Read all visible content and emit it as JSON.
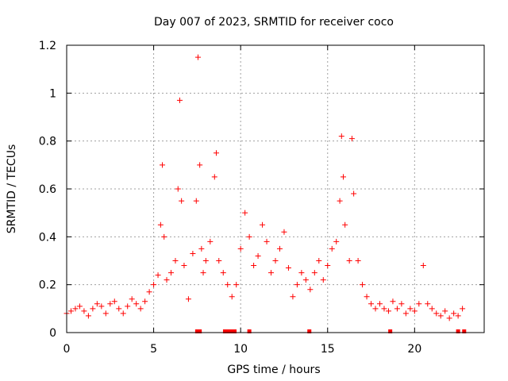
{
  "chart_data": {
    "type": "scatter",
    "title": "Day 007 of 2023, SRMTID for receiver coco",
    "xlabel": "GPS time / hours",
    "ylabel": "SRMTID / TECUs",
    "xlim": [
      0,
      24
    ],
    "ylim": [
      0,
      1.2
    ],
    "xticks": [
      "0",
      "5",
      "10",
      "15",
      "20"
    ],
    "xtick_values": [
      0,
      5,
      10,
      15,
      20
    ],
    "yticks": [
      "0",
      "0.2",
      "0.4",
      "0.6",
      "0.8",
      "1",
      "1.2"
    ],
    "ytick_values": [
      0,
      0.2,
      0.4,
      0.6,
      0.8,
      1.0,
      1.2
    ],
    "grid": true,
    "marker": "+",
    "series_color": "#ff0000",
    "series": [
      {
        "name": "SRMTID",
        "x": [
          0.0,
          0.25,
          0.5,
          0.75,
          1.0,
          1.25,
          1.5,
          1.75,
          2.0,
          2.25,
          2.5,
          2.75,
          3.0,
          3.25,
          3.5,
          3.75,
          4.0,
          4.25,
          4.5,
          4.75,
          5.0,
          5.25,
          5.4,
          5.5,
          5.6,
          5.75,
          6.0,
          6.25,
          6.4,
          6.5,
          6.6,
          6.75,
          7.0,
          7.25,
          7.45,
          7.55,
          7.65,
          7.75,
          7.85,
          8.0,
          8.25,
          8.5,
          8.6,
          8.75,
          9.0,
          9.25,
          9.5,
          9.75,
          10.0,
          10.25,
          10.5,
          10.75,
          11.0,
          11.25,
          11.5,
          11.75,
          12.0,
          12.25,
          12.5,
          12.75,
          13.0,
          13.25,
          13.5,
          13.75,
          14.0,
          14.25,
          14.5,
          14.75,
          15.0,
          15.25,
          15.5,
          15.7,
          15.8,
          15.9,
          16.0,
          16.25,
          16.4,
          16.5,
          16.75,
          17.0,
          17.25,
          17.5,
          17.75,
          18.0,
          18.25,
          18.5,
          18.75,
          19.0,
          19.25,
          19.5,
          19.75,
          20.0,
          20.25,
          20.5,
          20.75,
          21.0,
          21.25,
          21.5,
          21.75,
          22.0,
          22.25,
          22.5,
          22.75
        ],
        "y": [
          0.08,
          0.09,
          0.1,
          0.11,
          0.09,
          0.07,
          0.1,
          0.12,
          0.11,
          0.08,
          0.12,
          0.13,
          0.1,
          0.08,
          0.11,
          0.14,
          0.12,
          0.1,
          0.13,
          0.17,
          0.2,
          0.24,
          0.45,
          0.7,
          0.4,
          0.22,
          0.25,
          0.3,
          0.6,
          0.97,
          0.55,
          0.28,
          0.14,
          0.33,
          0.55,
          1.15,
          0.7,
          0.35,
          0.25,
          0.3,
          0.38,
          0.65,
          0.75,
          0.3,
          0.25,
          0.2,
          0.15,
          0.2,
          0.35,
          0.5,
          0.4,
          0.28,
          0.32,
          0.45,
          0.38,
          0.25,
          0.3,
          0.35,
          0.42,
          0.27,
          0.15,
          0.2,
          0.25,
          0.22,
          0.18,
          0.25,
          0.3,
          0.22,
          0.28,
          0.35,
          0.38,
          0.55,
          0.82,
          0.65,
          0.45,
          0.3,
          0.81,
          0.58,
          0.3,
          0.2,
          0.15,
          0.12,
          0.1,
          0.12,
          0.1,
          0.09,
          0.13,
          0.1,
          0.12,
          0.08,
          0.1,
          0.09,
          0.12,
          0.28,
          0.12,
          0.1,
          0.08,
          0.07,
          0.09,
          0.06,
          0.08,
          0.07,
          0.1
        ]
      }
    ],
    "data_gaps_hours": [
      7.5,
      7.65,
      9.1,
      9.3,
      9.5,
      9.65,
      10.5,
      13.95,
      18.6,
      22.5,
      22.85
    ]
  }
}
